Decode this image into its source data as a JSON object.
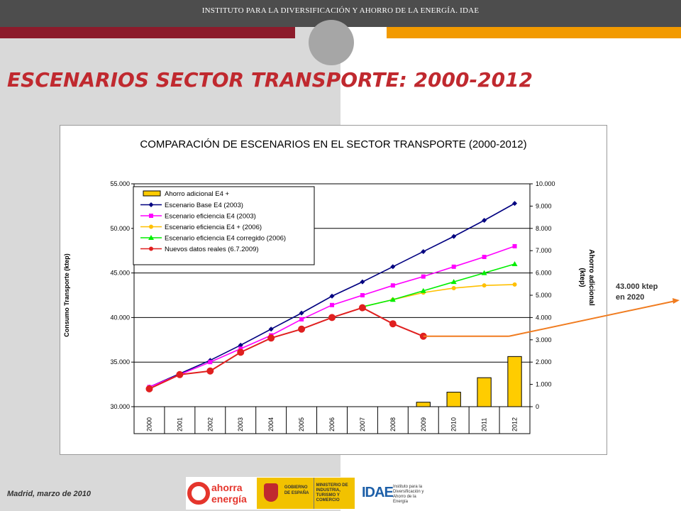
{
  "header": {
    "institute": "INSTITUTO PARA LA DIVERSIFICACIÓN Y AHORRO DE LA ENERGÍA. IDAE",
    "title": "ESCENARIOS SECTOR TRANSPORTE: 2000-2012"
  },
  "annotation": {
    "line1": "43.000 ktep",
    "line2": "en 2020"
  },
  "footer": {
    "date": "Madrid, marzo de 2010",
    "logo_ahorra_1": "ahorra",
    "logo_ahorra_2": "energía",
    "logo_gobierno": "GOBIERNO DE ESPAÑA",
    "logo_ministerio": "MINISTERIO DE INDUSTRIA, TURISMO Y COMERCIO",
    "logo_idae": "IDAE",
    "logo_idae_sub": "Instituto para la Diversificación y Ahorro de la Energía"
  },
  "colors": {
    "title": "#c0292f",
    "base": "#000080",
    "eficiencia": "#ff00ff",
    "eficiencia_plus": "#ffc000",
    "corregido": "#00ee00",
    "reales": "#e01f1f",
    "ahorro_bar": "#ffcc00",
    "arrow": "#f07c20"
  },
  "chart_data": {
    "type": "line",
    "title": "COMPARACIÓN DE ESCENARIOS EN EL SECTOR TRANSPORTE (2000-2012)",
    "ylabel": "Consumo Transporte (ktep)",
    "y2label": "Ahorro adicional (ktep)",
    "categories": [
      "2000",
      "2001",
      "2002",
      "2003",
      "2004",
      "2005",
      "2006",
      "2007",
      "2008",
      "2009",
      "2010",
      "2011",
      "2012"
    ],
    "ylim": [
      30000,
      55000
    ],
    "y2lim": [
      0,
      10000
    ],
    "y_ticks": [
      "30.000",
      "35.000",
      "40.000",
      "45.000",
      "50.000",
      "55.000"
    ],
    "y2_ticks": [
      "0",
      "1.000",
      "2.000",
      "3.000",
      "4.000",
      "5.000",
      "6.000",
      "7.000",
      "8.000",
      "9.000",
      "10.000"
    ],
    "grid": true,
    "legend_position": "top-left",
    "bars": {
      "name": "Ahorro adicional E4 +",
      "axis": "right",
      "values": [
        null,
        null,
        null,
        null,
        null,
        null,
        null,
        null,
        null,
        200,
        650,
        1300,
        2250
      ]
    },
    "series": [
      {
        "name": "Escenario Base E4 (2003)",
        "marker": "diamond",
        "values": [
          32200,
          33700,
          35200,
          36900,
          38700,
          40500,
          42400,
          44000,
          45700,
          47400,
          49100,
          50900,
          52800
        ]
      },
      {
        "name": "Escenario eficiencia E4 (2003)",
        "marker": "square",
        "values": [
          32200,
          33600,
          35000,
          36500,
          38000,
          39800,
          41400,
          42500,
          43600,
          44600,
          45700,
          46800,
          48000
        ]
      },
      {
        "name": "Escenario eficiencia E4 + (2006)",
        "marker": "circle",
        "values": [
          null,
          null,
          null,
          null,
          null,
          null,
          null,
          41200,
          42000,
          42800,
          43300,
          43600,
          43700
        ]
      },
      {
        "name": "Escenario eficiencia E4 corregido (2006)",
        "marker": "triangle",
        "values": [
          null,
          null,
          null,
          null,
          null,
          null,
          null,
          41200,
          42000,
          43000,
          44000,
          45000,
          46000
        ]
      },
      {
        "name": "Nuevos datos reales (6.7.2009)",
        "marker": "big-circle",
        "values": [
          32000,
          33600,
          34000,
          36100,
          37700,
          38700,
          40000,
          41100,
          39300,
          37900,
          null,
          null,
          null
        ]
      }
    ],
    "projection": {
      "from": "2009",
      "to": "2012",
      "value": 37900,
      "label_ref": "annotation"
    }
  }
}
